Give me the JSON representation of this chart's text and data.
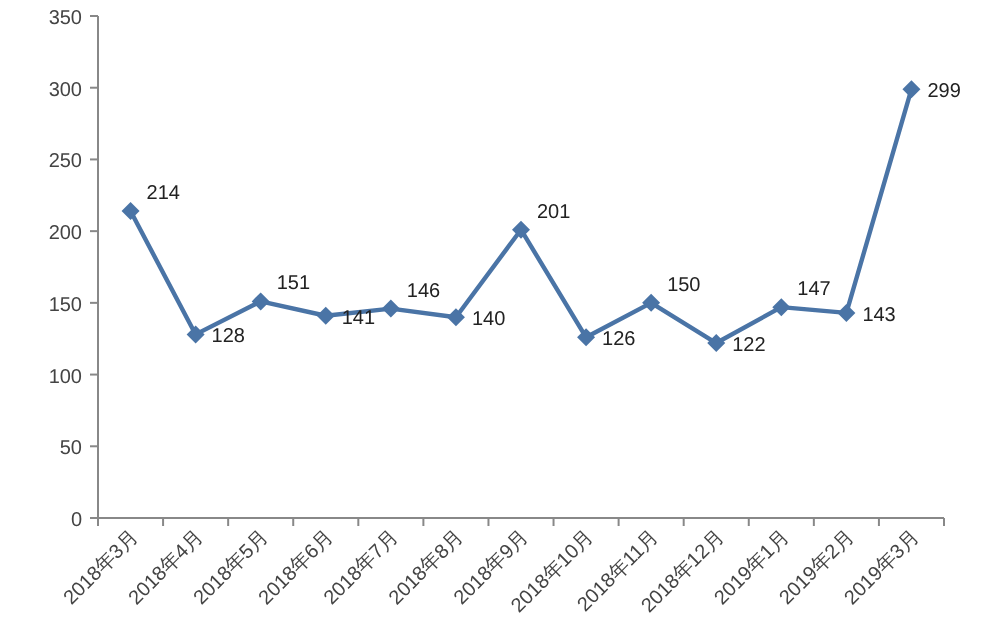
{
  "chart_data": {
    "type": "line",
    "categories": [
      "2018年3月",
      "2018年4月",
      "2018年5月",
      "2018年6月",
      "2018年7月",
      "2018年8月",
      "2018年9月",
      "2018年10月",
      "2018年11月",
      "2018年12月",
      "2019年1月",
      "2019年2月",
      "2019年3月"
    ],
    "series": [
      {
        "color": "#4a74a6",
        "values": [
          214,
          128,
          151,
          141,
          146,
          140,
          201,
          126,
          150,
          122,
          147,
          143,
          299
        ]
      }
    ],
    "ylim": [
      0,
      350
    ],
    "yticks": [
      0,
      50,
      100,
      150,
      200,
      250,
      300,
      350
    ],
    "marker": "diamond",
    "line_style": "solid",
    "data_labels": true
  }
}
